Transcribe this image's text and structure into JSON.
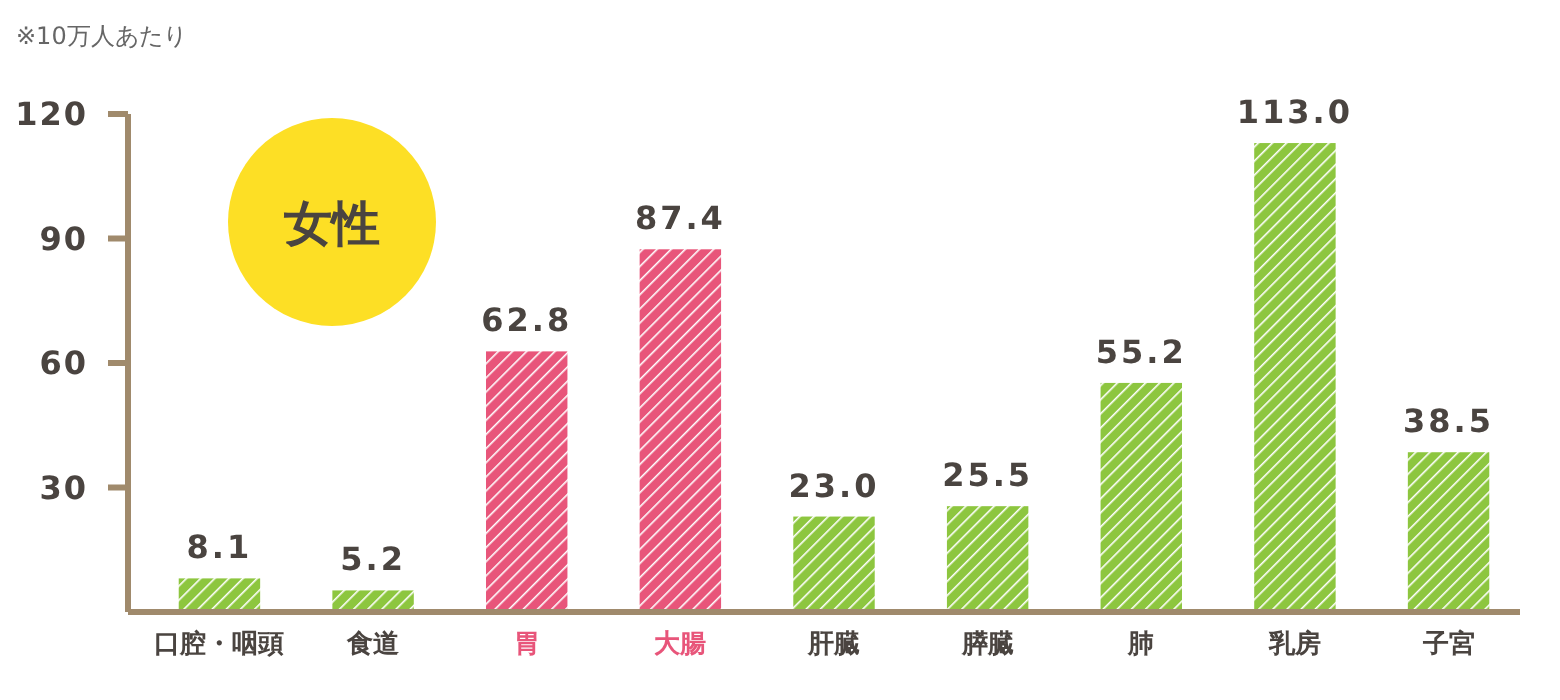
{
  "chart_data": {
    "type": "bar",
    "ylabel": "※10万人あたり",
    "annotations": [
      "女性"
    ],
    "categories": [
      "口腔・咽頭",
      "食道",
      "胃",
      "大腸",
      "肝臓",
      "膵臓",
      "肺",
      "乳房",
      "子宮"
    ],
    "values": [
      8.1,
      5.2,
      62.8,
      87.4,
      23.0,
      25.5,
      55.2,
      113.0,
      38.5
    ],
    "value_labels": [
      "8.1",
      "5.2",
      "62.8",
      "87.4",
      "23.0",
      "25.5",
      "55.2",
      "113.0",
      "38.5"
    ],
    "colors": [
      "#8dc63f",
      "#8dc63f",
      "#e8557a",
      "#e8557a",
      "#8dc63f",
      "#8dc63f",
      "#8dc63f",
      "#8dc63f",
      "#8dc63f"
    ],
    "ylim": [
      0,
      120
    ],
    "yticks": [
      30,
      60,
      90,
      120
    ],
    "grid": false
  }
}
